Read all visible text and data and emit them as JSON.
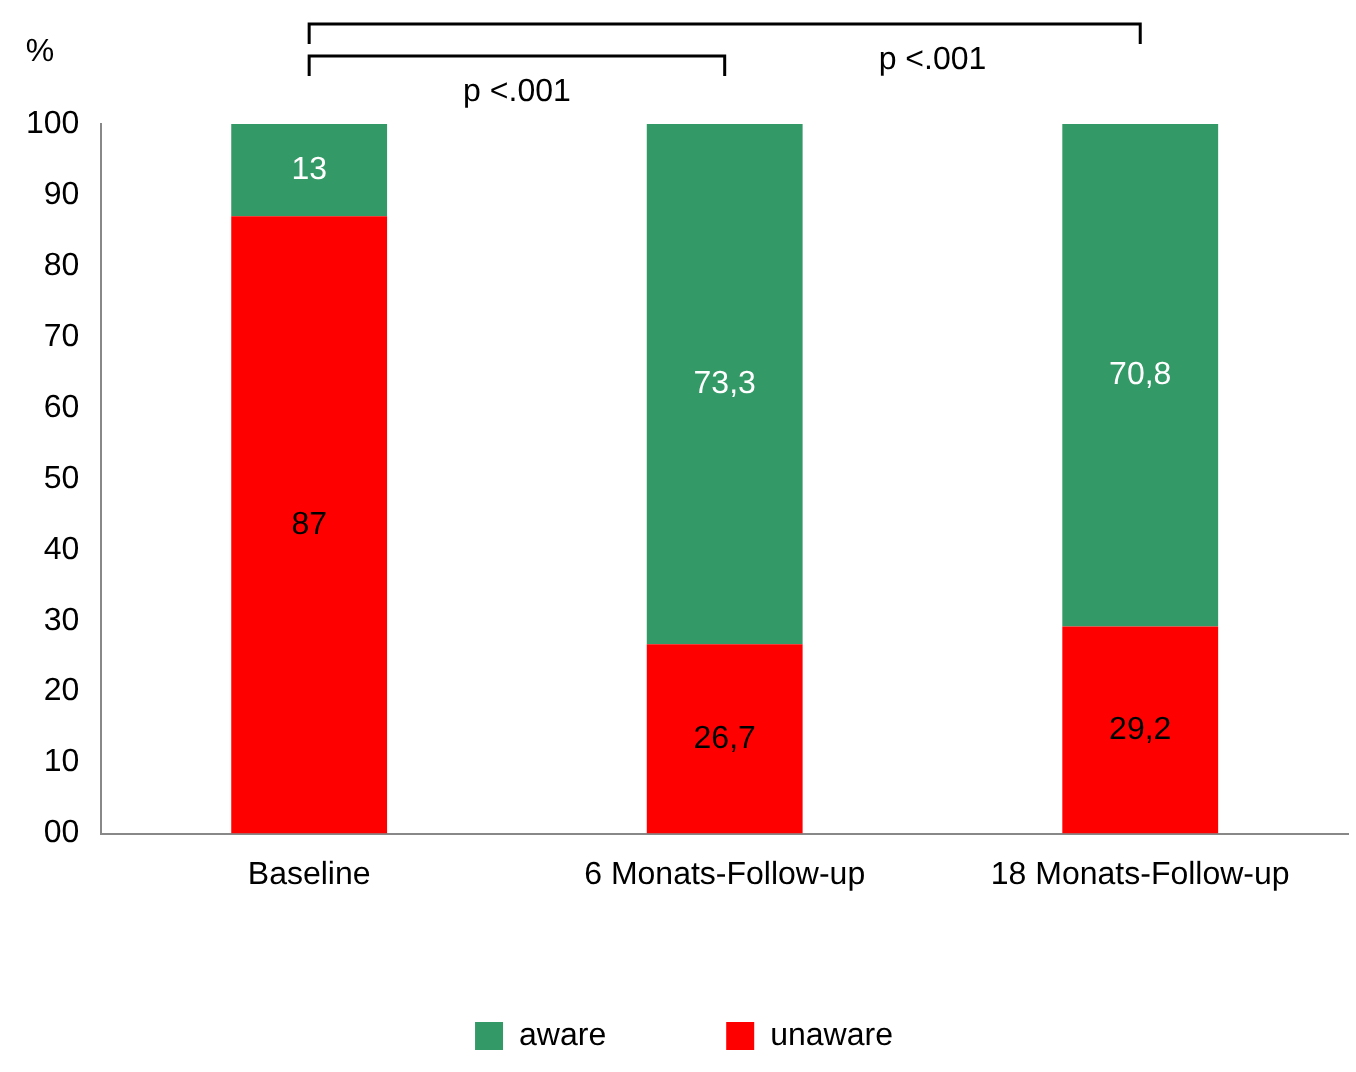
{
  "chart_data": {
    "type": "bar",
    "stacked": true,
    "ylabel": "%",
    "categories": [
      "Baseline",
      "6 Monats-Follow-up",
      "18 Monats-Follow-up"
    ],
    "series": [
      {
        "name": "unaware",
        "color": "#ff0000",
        "values": [
          87,
          26.7,
          29.2
        ],
        "value_labels": [
          "87",
          "26,7",
          "29,2"
        ]
      },
      {
        "name": "aware",
        "color": "#339966",
        "values": [
          13,
          73.3,
          70.8
        ],
        "value_labels": [
          "13",
          "73,3",
          "70,8"
        ]
      }
    ],
    "ylim": [
      0,
      100
    ],
    "yticks": [
      {
        "value": 0,
        "label": "00"
      },
      10,
      20,
      30,
      40,
      50,
      60,
      70,
      80,
      90,
      100
    ],
    "grid": false,
    "legend": "bottom",
    "annotations": [
      "p <.001",
      "p <.001"
    ]
  }
}
